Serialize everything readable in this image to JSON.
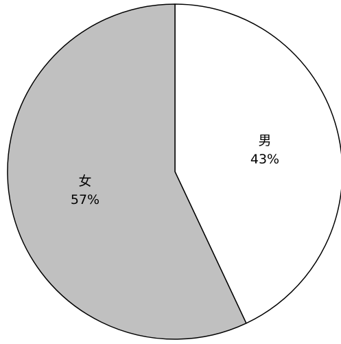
{
  "chart_data": {
    "type": "pie",
    "title": "",
    "start_angle_deg": 0,
    "direction": "clockwise",
    "slices": [
      {
        "label": "男",
        "value": 43,
        "value_label": "43%",
        "color": "#ffffff"
      },
      {
        "label": "女",
        "value": 57,
        "value_label": "57%",
        "color": "#c0c0c0"
      }
    ],
    "stroke_color": "#000000",
    "legend": "none"
  }
}
